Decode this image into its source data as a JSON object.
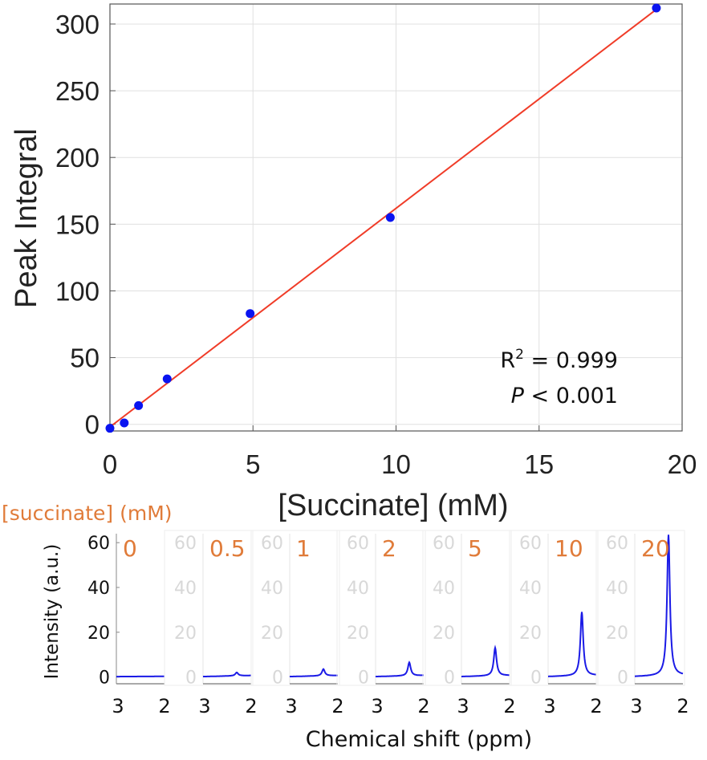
{
  "chart_data": [
    {
      "type": "scatter",
      "title": "",
      "xlabel": "[Succinate] (mM)",
      "ylabel": "Peak Integral",
      "xlim": [
        0,
        20
      ],
      "ylim": [
        -5,
        315
      ],
      "xticks": [
        0,
        5,
        10,
        15,
        20
      ],
      "yticks": [
        0,
        50,
        100,
        150,
        200,
        250,
        300
      ],
      "grid": true,
      "series": [
        {
          "x": [
            0,
            0.5,
            1,
            2,
            4.9,
            9.8,
            19.1
          ],
          "y": [
            -3,
            1,
            14,
            34,
            83,
            155,
            312
          ],
          "color": "#0A14F0"
        }
      ],
      "fit_line": {
        "x": [
          0,
          19.1
        ],
        "y": [
          -2,
          311
        ],
        "color": "#F03C28"
      },
      "annotations": {
        "r2_prefix": "R",
        "r2_sup": "2",
        "r2_value": " = 0.999",
        "p_symbol": "P",
        "p_value": " < 0.001"
      }
    },
    {
      "type": "line",
      "title": "[succinate] (mM)",
      "xlabel": "Chemical shift (ppm)",
      "ylabel": "Intensity (a.u.)",
      "xlim": [
        3,
        2
      ],
      "ylim": [
        -3,
        64
      ],
      "xticks": [
        "3",
        "2"
      ],
      "yticks": [
        0,
        20,
        40,
        60
      ],
      "line_color": "#1A1AE6",
      "panels": [
        {
          "label": "0",
          "peak": 0
        },
        {
          "label": "0.5",
          "peak": 1.5
        },
        {
          "label": "1",
          "peak": 3
        },
        {
          "label": "2",
          "peak": 6
        },
        {
          "label": "5",
          "peak": 12.5
        },
        {
          "label": "10",
          "peak": 28.5
        },
        {
          "label": "20",
          "peak": 63
        }
      ]
    }
  ],
  "colors": {
    "label_orange": "#E07B39",
    "faint_tick": "#D8D8D8",
    "grid": "#E0E0E0"
  }
}
